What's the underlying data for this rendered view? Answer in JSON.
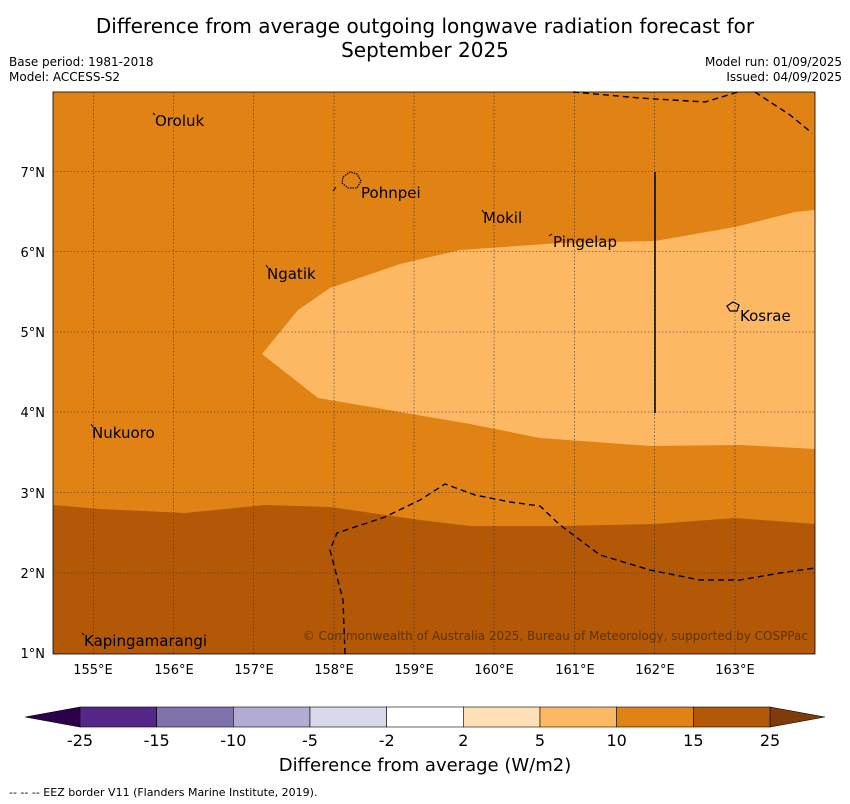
{
  "title": "Difference from average outgoing longwave radiation forecast for September 2025",
  "title_line1": "Difference from average outgoing longwave radiation forecast for",
  "title_line2": "September 2025",
  "meta_left": [
    "Base period: 1981-2018",
    "Model: ACCESS-S2"
  ],
  "meta_right": [
    "Model run: 01/09/2025",
    "Issued: 04/09/2025"
  ],
  "map": {
    "lon_range": [
      154.5,
      164.0
    ],
    "lat_range": [
      1.0,
      8.0
    ],
    "lon_ticks": [
      "155°E",
      "156°E",
      "157°E",
      "158°E",
      "159°E",
      "160°E",
      "161°E",
      "162°E",
      "163°E"
    ],
    "lat_ticks": [
      "1°N",
      "2°N",
      "3°N",
      "4°N",
      "5°N",
      "6°N",
      "7°N"
    ],
    "places": [
      "Oroluk",
      "Pohnpei",
      "Mokil",
      "Pingelap",
      "Ngatik",
      "Kosrae",
      "Nukuoro",
      "Kapingamarangi"
    ],
    "credit": "© Commonwealth of Australia 2025, Bureau of Meteorology, supported by COSPPac"
  },
  "colorbar": {
    "labels": [
      "-25",
      "-15",
      "-10",
      "-5",
      "-2",
      "2",
      "5",
      "10",
      "15",
      "25"
    ],
    "colors": [
      "#542788",
      "#8073ac",
      "#b2abd2",
      "#d8daeb",
      "#ffffff",
      "#fee0b6",
      "#fdb863",
      "#e08214",
      "#b35806"
    ],
    "low_extend": "#2d004b",
    "high_extend": "#7f3b08",
    "title": "Difference from average (W/m2)"
  },
  "legend_footer": "--  --  -- EEZ border V11 (Flanders Marine Institute, 2019)."
}
